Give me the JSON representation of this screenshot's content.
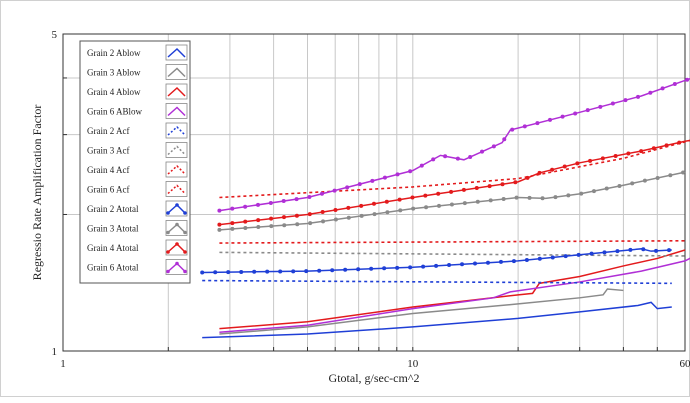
{
  "chart_data": {
    "type": "line",
    "title": "",
    "xlabel": "Gtotal, g/sec-cm^2",
    "ylabel": "Regressio Rate Amplification Factor",
    "x_scale": "log",
    "y_scale": "log",
    "xlim": [
      1,
      60
    ],
    "ylim": [
      1,
      5
    ],
    "x_tick_labels": [
      "1",
      "10",
      "60"
    ],
    "y_tick_labels": [
      "1",
      "5"
    ],
    "grid": true,
    "legend_position": "top-left",
    "series": [
      {
        "name": "Grain 2 Ablow",
        "color": "#1f3fd6",
        "style": "solid",
        "marker": "none",
        "x": [
          2.5,
          5,
          10,
          20,
          30,
          44,
          48,
          50,
          55
        ],
        "y": [
          1.07,
          1.09,
          1.13,
          1.18,
          1.22,
          1.26,
          1.28,
          1.24,
          1.25
        ]
      },
      {
        "name": "Grain 3 Ablow",
        "color": "#8a8a8a",
        "style": "solid",
        "marker": "none",
        "x": [
          2.8,
          5,
          10,
          20,
          30,
          35,
          36,
          40
        ],
        "y": [
          1.09,
          1.13,
          1.21,
          1.27,
          1.31,
          1.33,
          1.37,
          1.36
        ]
      },
      {
        "name": "Grain 4 Ablow",
        "color": "#e31a1c",
        "style": "solid",
        "marker": "none",
        "x": [
          2.8,
          5,
          10,
          20,
          22,
          23,
          30,
          40,
          50,
          60
        ],
        "y": [
          1.12,
          1.16,
          1.25,
          1.33,
          1.34,
          1.41,
          1.46,
          1.54,
          1.6,
          1.67
        ]
      },
      {
        "name": "Grain 6 ABlow",
        "color": "#b02fd6",
        "style": "solid",
        "marker": "none",
        "x": [
          2.8,
          5,
          10,
          17,
          19,
          30,
          45,
          60,
          65
        ],
        "y": [
          1.1,
          1.14,
          1.24,
          1.31,
          1.35,
          1.42,
          1.5,
          1.58,
          1.63
        ]
      },
      {
        "name": "Grain 2 Acf",
        "color": "#1f3fd6",
        "style": "dotted",
        "marker": "none",
        "x": [
          2.5,
          55
        ],
        "y": [
          1.43,
          1.41
        ]
      },
      {
        "name": "Grain 3 Acf",
        "color": "#8a8a8a",
        "style": "dotted",
        "marker": "none",
        "x": [
          2.8,
          60
        ],
        "y": [
          1.65,
          1.62
        ]
      },
      {
        "name": "Grain 4 Acf",
        "color": "#e31a1c",
        "style": "dotted",
        "marker": "none",
        "x": [
          2.8,
          60
        ],
        "y": [
          1.73,
          1.75
        ]
      },
      {
        "name": "Grain 6 Acf",
        "color": "#e31a1c",
        "style": "dotted",
        "marker": "none",
        "x": [
          2.8,
          10,
          20,
          40,
          65
        ],
        "y": [
          2.18,
          2.3,
          2.4,
          2.66,
          2.94
        ]
      },
      {
        "name": "Grain 2 Atotal",
        "color": "#1f3fd6",
        "style": "solid",
        "marker": "circle",
        "x": [
          2.5,
          5,
          10,
          20,
          30,
          45,
          48,
          55
        ],
        "y": [
          1.49,
          1.5,
          1.53,
          1.58,
          1.63,
          1.68,
          1.66,
          1.67
        ]
      },
      {
        "name": "Grain 3 Atotal",
        "color": "#8a8a8a",
        "style": "solid",
        "marker": "circle",
        "x": [
          2.8,
          5,
          10,
          20,
          24,
          30,
          40,
          60
        ],
        "y": [
          1.85,
          1.91,
          2.06,
          2.18,
          2.17,
          2.22,
          2.32,
          2.48
        ]
      },
      {
        "name": "Grain 4 Atotal",
        "color": "#e31a1c",
        "style": "solid",
        "marker": "circle",
        "x": [
          2.8,
          5,
          10,
          20,
          23,
          30,
          45,
          60,
          70
        ],
        "y": [
          1.9,
          2.0,
          2.18,
          2.36,
          2.47,
          2.6,
          2.76,
          2.9,
          2.96
        ]
      },
      {
        "name": "Grain 6 Atotal",
        "color": "#b02fd6",
        "style": "solid",
        "marker": "circle",
        "x": [
          2.8,
          5,
          10,
          12,
          14,
          18,
          19,
          30,
          45,
          60,
          80
        ],
        "y": [
          2.04,
          2.18,
          2.5,
          2.7,
          2.64,
          2.88,
          3.07,
          3.36,
          3.65,
          3.95,
          4.25
        ]
      }
    ]
  }
}
